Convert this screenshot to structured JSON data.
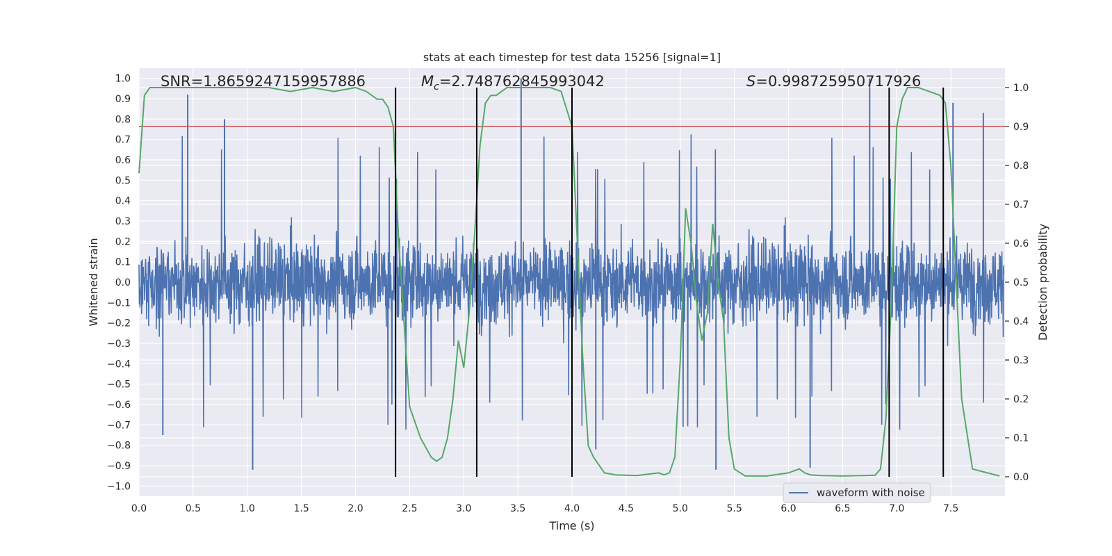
{
  "colors": {
    "plot_background": "#eaeaf2",
    "grid": "#ffffff",
    "waveform": "#4c72b0",
    "detection": "#55a868",
    "threshold": "#c44e52",
    "markers": "#000000"
  },
  "chart_data": {
    "type": "line",
    "title": "stats at each timestep for test data 15256 [signal=1]",
    "xlabel": "Time (s)",
    "ylabel_left": "Whitened strain",
    "ylabel_right": "Detection probability",
    "xlim": [
      0,
      8
    ],
    "ylim_left": [
      -1.05,
      1.05
    ],
    "ylim_right": [
      -0.05,
      1.05
    ],
    "xticks": [
      "0.0",
      "0.5",
      "1.0",
      "1.5",
      "2.0",
      "2.5",
      "3.0",
      "3.5",
      "4.0",
      "4.5",
      "5.0",
      "5.5",
      "6.0",
      "6.5",
      "7.0",
      "7.5"
    ],
    "yticks_left": [
      "-1.0",
      "-0.9",
      "-0.8",
      "-0.7",
      "-0.6",
      "-0.5",
      "-0.4",
      "-0.3",
      "-0.2",
      "-0.1",
      "0.0",
      "0.1",
      "0.2",
      "0.3",
      "0.4",
      "0.5",
      "0.6",
      "0.7",
      "0.8",
      "0.9",
      "1.0"
    ],
    "yticks_right": [
      "0.0",
      "0.1",
      "0.2",
      "0.3",
      "0.4",
      "0.5",
      "0.6",
      "0.7",
      "0.8",
      "0.9",
      "1.0"
    ],
    "grid": true,
    "legend": {
      "placement": "lower right",
      "entries": [
        "waveform with noise"
      ]
    },
    "annotations": {
      "snr": "SNR=1.8659247159957886",
      "mc_prefix": "M",
      "mc_sub": "c",
      "mc_value": "=2.748762845993042",
      "s_prefix": "S",
      "s_value": "=0.998725950717926"
    },
    "threshold_right": 0.9,
    "markers_x": [
      2.37,
      3.12,
      4.0,
      6.93,
      7.43
    ],
    "waveform": {
      "name": "waveform with noise",
      "typical_amplitude": 0.4,
      "peaks": [
        {
          "x": 0.45,
          "y": 0.92
        },
        {
          "x": 0.79,
          "y": 0.8
        },
        {
          "x": 3.53,
          "y": 1.0
        },
        {
          "x": 6.75,
          "y": 1.0
        },
        {
          "x": 7.52,
          "y": 0.88
        },
        {
          "x": 7.8,
          "y": 0.83
        },
        {
          "x": 1.05,
          "y": -0.92
        },
        {
          "x": 5.33,
          "y": -0.92
        },
        {
          "x": 6.2,
          "y": -0.91
        },
        {
          "x": 2.37,
          "y": -0.75
        },
        {
          "x": 0.22,
          "y": -0.75
        },
        {
          "x": 4.22,
          "y": -0.82
        }
      ]
    },
    "detection_probability": {
      "x": [
        0.0,
        0.05,
        0.1,
        0.2,
        0.4,
        0.8,
        1.2,
        1.4,
        1.6,
        1.8,
        2.0,
        2.1,
        2.2,
        2.25,
        2.3,
        2.35,
        2.4,
        2.5,
        2.6,
        2.7,
        2.75,
        2.8,
        2.85,
        2.9,
        2.95,
        3.0,
        3.05,
        3.1,
        3.15,
        3.2,
        3.25,
        3.3,
        3.4,
        3.6,
        3.8,
        3.9,
        4.0,
        4.05,
        4.1,
        4.15,
        4.2,
        4.3,
        4.4,
        4.6,
        4.8,
        4.85,
        4.9,
        4.95,
        5.0,
        5.05,
        5.1,
        5.15,
        5.2,
        5.25,
        5.3,
        5.35,
        5.4,
        5.45,
        5.5,
        5.6,
        5.8,
        6.0,
        6.1,
        6.15,
        6.2,
        6.3,
        6.5,
        6.7,
        6.8,
        6.85,
        6.9,
        6.95,
        7.0,
        7.05,
        7.1,
        7.2,
        7.3,
        7.4,
        7.45,
        7.5,
        7.55,
        7.6,
        7.7,
        7.95
      ],
      "y": [
        0.78,
        0.98,
        1.0,
        1.0,
        1.0,
        1.0,
        1.0,
        0.99,
        1.0,
        0.99,
        1.0,
        0.99,
        0.97,
        0.97,
        0.95,
        0.9,
        0.6,
        0.18,
        0.1,
        0.05,
        0.04,
        0.05,
        0.1,
        0.2,
        0.35,
        0.28,
        0.42,
        0.62,
        0.85,
        0.96,
        0.98,
        0.98,
        1.0,
        1.0,
        1.0,
        0.99,
        0.9,
        0.6,
        0.3,
        0.08,
        0.05,
        0.01,
        0.005,
        0.003,
        0.01,
        0.005,
        0.01,
        0.05,
        0.3,
        0.69,
        0.6,
        0.45,
        0.35,
        0.42,
        0.65,
        0.5,
        0.4,
        0.1,
        0.02,
        0.002,
        0.002,
        0.01,
        0.02,
        0.01,
        0.005,
        0.003,
        0.002,
        0.003,
        0.004,
        0.02,
        0.15,
        0.45,
        0.9,
        0.97,
        1.0,
        1.0,
        0.99,
        0.98,
        0.96,
        0.8,
        0.5,
        0.2,
        0.02,
        0.002
      ]
    }
  }
}
